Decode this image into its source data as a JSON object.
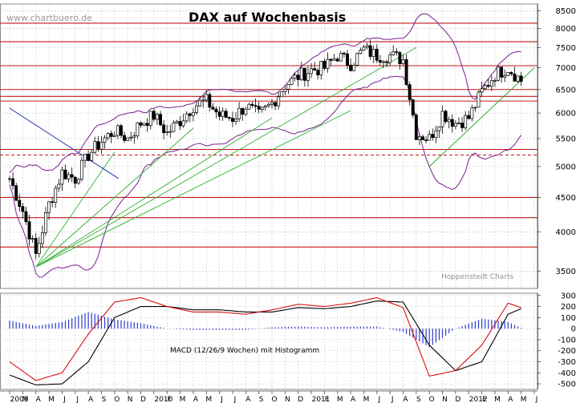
{
  "source_label": "www.chartbuero.de",
  "watermark": "Hoppenstedt Charts",
  "chart_data": [
    {
      "type": "line",
      "title": "DAX auf Wochenbasis",
      "y_scale": "log",
      "ylim": [
        3300,
        8700
      ],
      "y_ticks": [
        3500,
        4000,
        4500,
        5000,
        5500,
        6000,
        6500,
        7000,
        7500,
        8000,
        8500
      ],
      "horizontal_lines": [
        8150,
        7650,
        7050,
        6500,
        6350,
        6250,
        5300,
        4500,
        4200,
        3800
      ],
      "dashed_lines": [
        5200
      ],
      "x_tick_labels": [
        "2009",
        "M",
        "A",
        "M",
        "J",
        "J",
        "A",
        "S",
        "O",
        "N",
        "D",
        "2010",
        "F",
        "M",
        "A",
        "M",
        "J",
        "J",
        "A",
        "S",
        "O",
        "N",
        "D",
        "2011",
        "F",
        "M",
        "A",
        "M",
        "J",
        "J",
        "A",
        "S",
        "O",
        "N",
        "D",
        "2012",
        "F",
        "M",
        "A",
        "M",
        "J"
      ],
      "x_month_start": "2009-01",
      "grid": true,
      "series": [
        {
          "name": "",
          "x": [
            "2009-01",
            "2009-02",
            "2009-03",
            "2009-04",
            "2009-05",
            "2009-06",
            "2009-07",
            "2009-08",
            "2009-09",
            "2009-10",
            "2009-11",
            "2009-12",
            "2010-01",
            "2010-02",
            "2010-03",
            "2010-04",
            "2010-05",
            "2010-06",
            "2010-07",
            "2010-08",
            "2010-09",
            "2010-10",
            "2010-11",
            "2010-12",
            "2011-01",
            "2011-02",
            "2011-03",
            "2011-04",
            "2011-05",
            "2011-06",
            "2011-07",
            "2011-08",
            "2011-09",
            "2011-10",
            "2011-11",
            "2011-12",
            "2012-01",
            "2012-02",
            "2012-03",
            "2012-04"
          ],
          "y": [
            4800,
            4300,
            3700,
            4400,
            4900,
            4800,
            5200,
            5450,
            5650,
            5500,
            5800,
            5950,
            5600,
            5850,
            6150,
            6250,
            5950,
            5900,
            6150,
            5950,
            6200,
            6600,
            6800,
            6950,
            7000,
            7300,
            7100,
            7450,
            7300,
            7300,
            7200,
            5600,
            5500,
            6000,
            5800,
            5900,
            6450,
            6850,
            7000,
            6700
          ]
        }
      ]
    },
    {
      "type": "line",
      "title": "MACD (12/26/9 Wochen) mit Histogramm",
      "ylim": [
        -550,
        320
      ],
      "y_ticks": [
        300,
        200,
        100,
        0,
        -100,
        -200,
        -300,
        -400,
        -500
      ],
      "series": [
        {
          "name": "",
          "x": [
            "2009-01",
            "2009-03",
            "2009-05",
            "2009-07",
            "2009-09",
            "2009-11",
            "2010-01",
            "2010-03",
            "2010-05",
            "2010-07",
            "2010-09",
            "2010-11",
            "2011-01",
            "2011-03",
            "2011-05",
            "2011-07",
            "2011-09",
            "2011-11",
            "2012-01",
            "2012-03",
            "2012-04"
          ],
          "y": [
            -300,
            -470,
            -400,
            -50,
            240,
            280,
            200,
            150,
            150,
            130,
            170,
            220,
            200,
            230,
            280,
            190,
            -430,
            -380,
            -150,
            230,
            190
          ]
        },
        {
          "name": "",
          "x": [
            "2009-01",
            "2009-03",
            "2009-05",
            "2009-07",
            "2009-09",
            "2009-11",
            "2010-01",
            "2010-03",
            "2010-05",
            "2010-07",
            "2010-09",
            "2010-11",
            "2011-01",
            "2011-03",
            "2011-05",
            "2011-07",
            "2011-09",
            "2011-11",
            "2012-01",
            "2012-03",
            "2012-04"
          ],
          "y": [
            -420,
            -510,
            -500,
            -300,
            100,
            200,
            200,
            170,
            170,
            150,
            150,
            190,
            180,
            200,
            250,
            240,
            -150,
            -380,
            -300,
            130,
            180
          ]
        }
      ]
    }
  ],
  "colors": {
    "background": "#ffffff",
    "grid": "#c8c8c8",
    "price": "#000000",
    "bollinger": "#7a2090",
    "hline": "#c01818",
    "trend_green": "#30b030",
    "trend_blue": "#2030b0",
    "macd_fast": "#d81010",
    "macd_slow": "#000000",
    "histogram": "#2a3cc8",
    "text": "#000000",
    "source": "#9a9a9a"
  }
}
